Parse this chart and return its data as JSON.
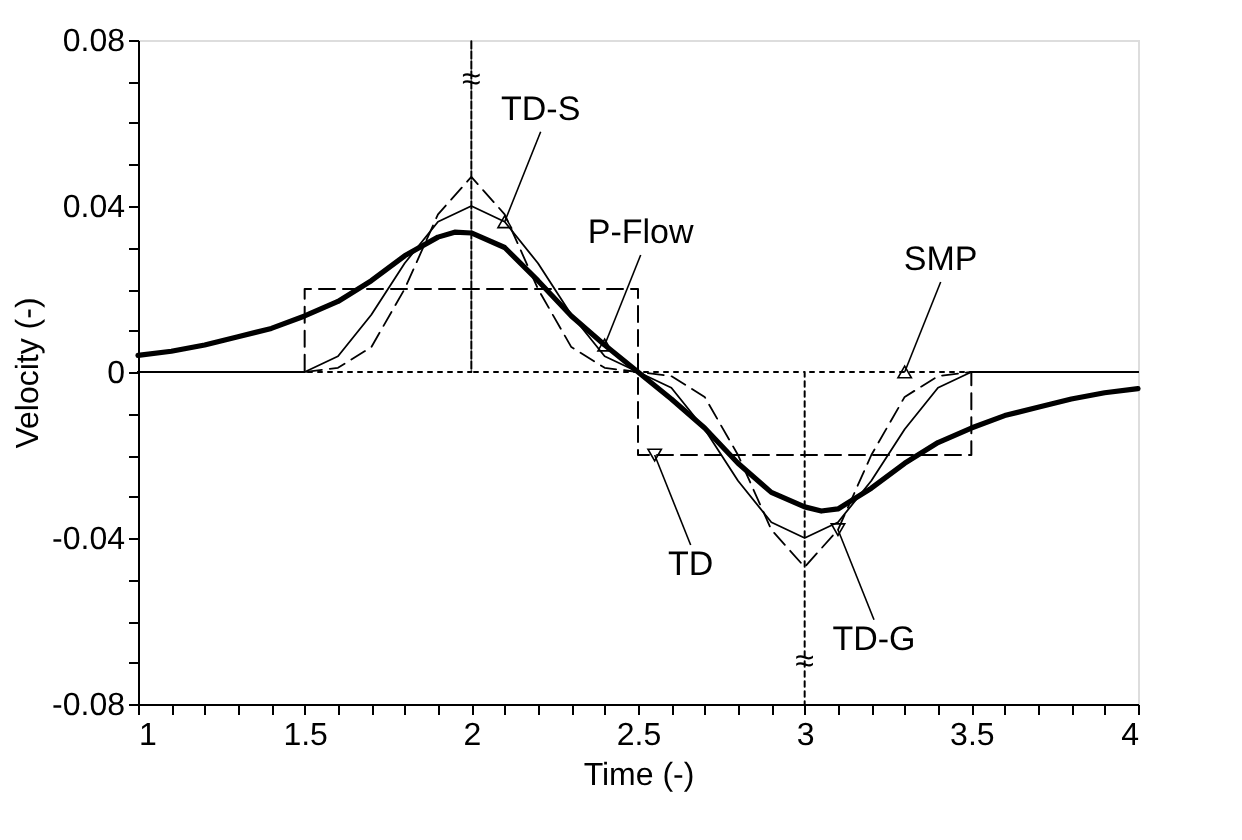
{
  "chart_data": {
    "type": "line",
    "xlabel": "Time (-)",
    "ylabel": "Velocity (-)",
    "xlim": [
      1,
      4
    ],
    "ylim": [
      -0.08,
      0.08
    ],
    "xticks": [
      1,
      {
        "value": 1.1,
        "label": null
      },
      {
        "value": 1.2,
        "label": null
      },
      {
        "value": 1.3,
        "label": null
      },
      {
        "value": 1.4,
        "label": null
      },
      1.5,
      {
        "value": 1.6,
        "label": null
      },
      {
        "value": 1.7,
        "label": null
      },
      {
        "value": 1.8,
        "label": null
      },
      {
        "value": 1.9,
        "label": null
      },
      2,
      {
        "value": 2.1,
        "label": null
      },
      {
        "value": 2.2,
        "label": null
      },
      {
        "value": 2.3,
        "label": null
      },
      {
        "value": 2.4,
        "label": null
      },
      2.5,
      {
        "value": 2.6,
        "label": null
      },
      {
        "value": 2.7,
        "label": null
      },
      {
        "value": 2.8,
        "label": null
      },
      {
        "value": 2.9,
        "label": null
      },
      3,
      {
        "value": 3.1,
        "label": null
      },
      {
        "value": 3.2,
        "label": null
      },
      {
        "value": 3.3,
        "label": null
      },
      {
        "value": 3.4,
        "label": null
      },
      3.5,
      {
        "value": 3.6,
        "label": null
      },
      {
        "value": 3.7,
        "label": null
      },
      {
        "value": 3.8,
        "label": null
      },
      {
        "value": 3.9,
        "label": null
      },
      4
    ],
    "yticks": [
      -0.08,
      {
        "value": -0.07,
        "label": null
      },
      {
        "value": -0.06,
        "label": null
      },
      {
        "value": -0.05,
        "label": null
      },
      -0.04,
      {
        "value": -0.03,
        "label": null
      },
      {
        "value": -0.02,
        "label": null
      },
      {
        "value": -0.01,
        "label": null
      },
      0,
      {
        "value": 0.01,
        "label": null
      },
      {
        "value": 0.02,
        "label": null
      },
      {
        "value": 0.03,
        "label": null
      },
      0.04,
      {
        "value": 0.05,
        "label": null
      },
      {
        "value": 0.06,
        "label": null
      },
      {
        "value": 0.07,
        "label": null
      },
      0.08
    ],
    "grid": false,
    "marker": "none",
    "series": [
      {
        "color": "#000000",
        "line_style": "solid",
        "x": [
          1,
          1.1,
          1.2,
          1.3,
          1.4,
          1.5,
          1.6,
          1.7,
          1.8,
          1.9,
          1.95,
          2,
          2.1,
          2.2,
          2.3,
          2.4,
          2.5,
          2.6,
          2.7,
          2.8,
          2.9,
          3,
          3.05,
          3.1,
          3.2,
          3.3,
          3.4,
          3.5,
          3.6,
          3.7,
          3.8,
          3.9,
          4
        ],
        "values": [
          0.004,
          0.005,
          0.0065,
          0.0085,
          0.0105,
          0.0135,
          0.017,
          0.022,
          0.028,
          0.0325,
          0.0337,
          0.0335,
          0.03,
          0.022,
          0.0135,
          0.0065,
          0,
          -0.0065,
          -0.0135,
          -0.022,
          -0.029,
          -0.0325,
          -0.0335,
          -0.033,
          -0.028,
          -0.022,
          -0.017,
          -0.0135,
          -0.0105,
          -0.0085,
          -0.0065,
          -0.005,
          -0.004
        ]
      },
      {
        "color": "#000000",
        "line_style": "solid",
        "x": [
          1,
          1.5,
          1.6,
          1.7,
          1.8,
          1.9,
          2,
          2.1,
          2.2,
          2.3,
          2.4,
          2.5,
          2.6,
          2.7,
          2.8,
          2.9,
          3,
          3.1,
          3.2,
          3.3,
          3.4,
          3.5,
          4
        ],
        "values": [
          0,
          0,
          0.0038,
          0.0138,
          0.0262,
          0.0362,
          0.04,
          0.0362,
          0.0262,
          0.0138,
          0.0038,
          0,
          -0.0038,
          -0.0138,
          -0.0262,
          -0.0362,
          -0.04,
          -0.0362,
          -0.0262,
          -0.0138,
          -0.0038,
          0,
          0
        ]
      },
      {
        "color": "#000000",
        "line_style": "dashed",
        "x": [
          1,
          1.5,
          1.6,
          1.7,
          1.8,
          1.9,
          2,
          2.1,
          2.2,
          2.3,
          2.4,
          2.5,
          2.6,
          2.7,
          2.8,
          2.9,
          3,
          3.1,
          3.2,
          3.3,
          3.4,
          3.5,
          4
        ],
        "values": [
          0,
          0,
          0.001,
          0.006,
          0.02,
          0.038,
          0.047,
          0.038,
          0.02,
          0.006,
          0.001,
          0,
          -0.001,
          -0.006,
          -0.02,
          -0.038,
          -0.047,
          -0.038,
          -0.02,
          -0.006,
          -0.001,
          0,
          0
        ]
      },
      {
        "color": "#000000",
        "line_style": "dashed",
        "x": [
          1,
          1.5,
          1.5,
          2.5,
          2.5,
          3.5,
          3.5,
          4
        ],
        "values": [
          0,
          0,
          0.02,
          0.02,
          -0.02,
          -0.02,
          0,
          0
        ]
      },
      {
        "color": "#000000",
        "line_style": "dotted",
        "x": [
          1,
          2,
          2,
          2,
          3,
          3,
          3,
          4
        ],
        "values": [
          0,
          0,
          0.08,
          0,
          0,
          -0.08,
          0,
          0
        ]
      }
    ],
    "annotations": [
      {
        "text": "TD-S",
        "x": 2.1,
        "y": 0.0362
      },
      {
        "text": "P-Flow",
        "x": 2.4,
        "y": 0.0065
      },
      {
        "text": "SMP",
        "x": 3.3,
        "y": 0
      },
      {
        "text": "TD",
        "x": 2.55,
        "y": -0.02
      },
      {
        "text": "TD-G",
        "x": 3.1,
        "y": -0.038
      },
      {
        "text": "≈",
        "x": 2,
        "y": 0.08
      },
      {
        "text": "≈",
        "x": 3,
        "y": -0.08
      }
    ]
  }
}
